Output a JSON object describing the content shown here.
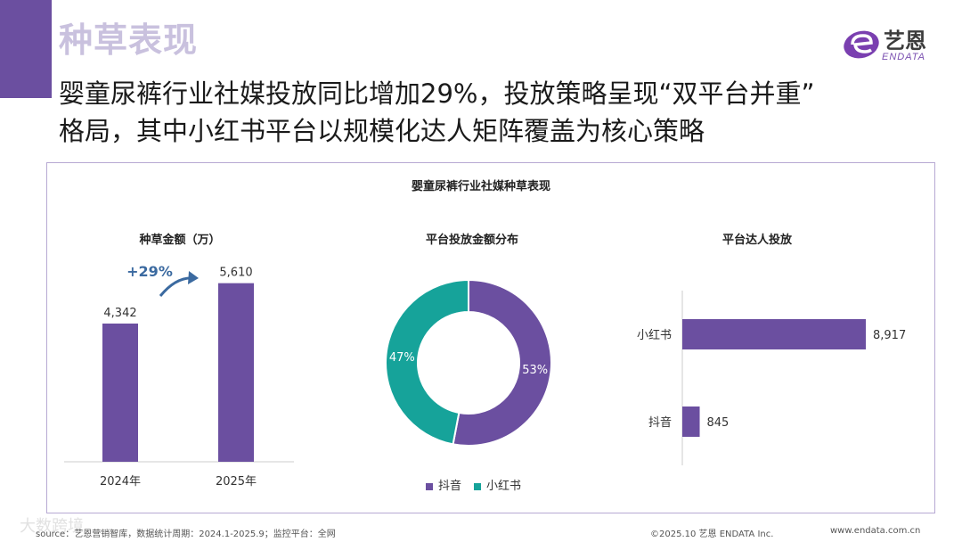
{
  "header": {
    "section_title": "种草表现",
    "headline_line1": "婴童尿裤行业社媒投放同比增加29%，投放策略呈现“双平台并重”",
    "headline_line2": "格局，其中小红书平台以规模化达人矩阵覆盖为核心策略"
  },
  "logo": {
    "cn": "艺恩",
    "en": "ENDATA",
    "icon": "endata-e-logo-icon"
  },
  "panel_title": "婴童尿裤行业社媒种草表现",
  "colors": {
    "purple": "#6b4fa0",
    "teal": "#16a39a",
    "accent_bar": "#6b4fa0"
  },
  "chart_data": [
    {
      "type": "bar",
      "title": "种草金额（万）",
      "categories": [
        "2024年",
        "2025年"
      ],
      "values": [
        4342,
        5610
      ],
      "value_labels": [
        "4,342",
        "5,610"
      ],
      "growth_label": "+29%",
      "ylim": [
        0,
        6500
      ]
    },
    {
      "type": "pie",
      "title": "平台投放金额分布",
      "slices": [
        {
          "name": "抖音",
          "value": 53,
          "label": "53%"
        },
        {
          "name": "小红书",
          "value": 47,
          "label": "47%"
        }
      ],
      "legend": [
        "抖音",
        "小红书"
      ]
    },
    {
      "type": "bar",
      "orientation": "horizontal",
      "title": "平台达人投放",
      "categories": [
        "小红书",
        "抖音"
      ],
      "values": [
        8917,
        845
      ],
      "value_labels": [
        "8,917",
        "845"
      ],
      "xlim": [
        0,
        8917
      ]
    }
  ],
  "footer": {
    "source": "source：艺恩营销智库，数据统计周期：2024.1-2025.9；监控平台：全网",
    "copyright": "©2025.10  艺恩 ENDATA Inc.",
    "website": "www.endata.com.cn",
    "watermark": "大数跨境"
  }
}
